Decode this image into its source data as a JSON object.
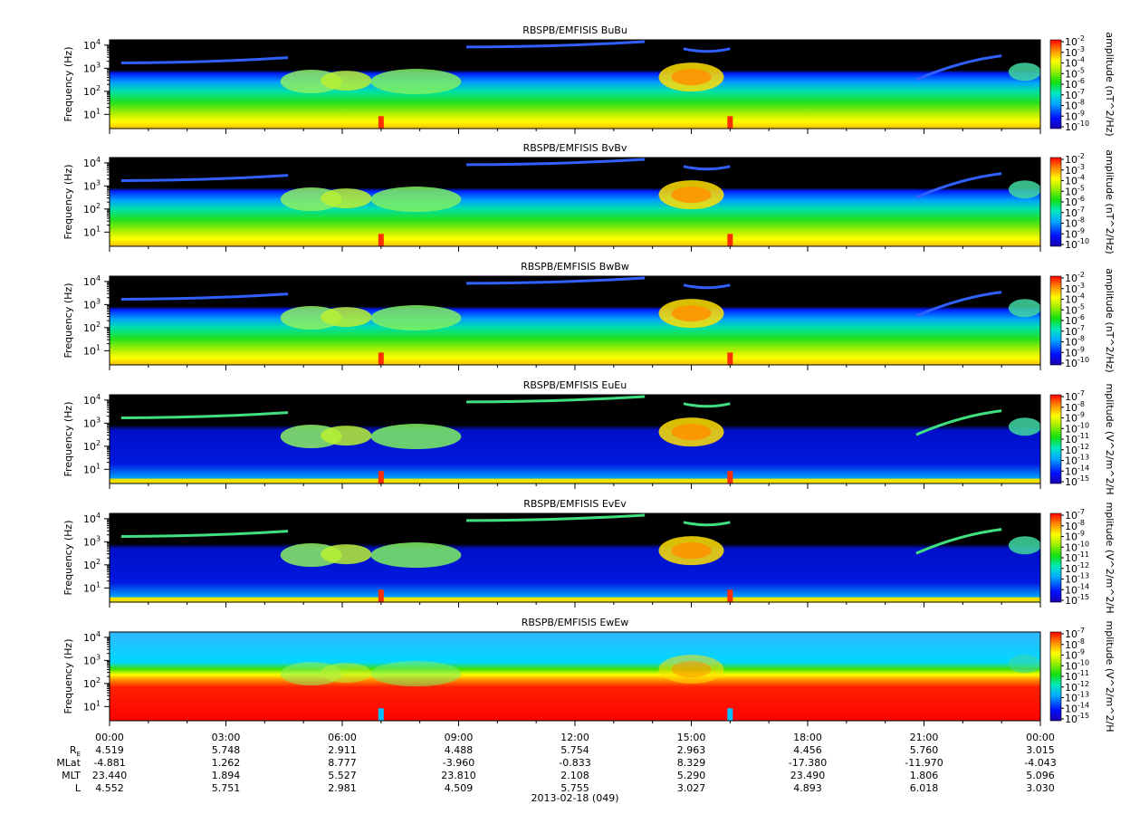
{
  "chart_data": {
    "type": "heatmap",
    "date_label": "2013-02-18 (049)",
    "x_ticks": [
      "00:00",
      "03:00",
      "06:00",
      "09:00",
      "12:00",
      "15:00",
      "18:00",
      "21:00",
      "00:00"
    ],
    "ylabel": "Frequency (Hz)",
    "y_scale": "log",
    "y_ticks": [
      {
        "base": "10",
        "exp": "1"
      },
      {
        "base": "10",
        "exp": "2"
      },
      {
        "base": "10",
        "exp": "3"
      },
      {
        "base": "10",
        "exp": "4"
      }
    ],
    "ephemeris": [
      {
        "label": "R",
        "sub": "E",
        "values": [
          "4.519",
          "5.748",
          "2.911",
          "4.488",
          "5.754",
          "2.963",
          "4.456",
          "5.760",
          "3.015"
        ]
      },
      {
        "label": "MLat",
        "sub": "",
        "values": [
          "-4.881",
          "1.262",
          "8.777",
          "-3.960",
          "-0.833",
          "8.329",
          "-17.380",
          "-11.970",
          "-4.043"
        ]
      },
      {
        "label": "MLT",
        "sub": "",
        "values": [
          "23.440",
          "1.894",
          "5.527",
          "23.810",
          "2.108",
          "5.290",
          "23.490",
          "1.806",
          "5.096"
        ]
      },
      {
        "label": "L",
        "sub": "",
        "values": [
          "4.552",
          "5.751",
          "2.981",
          "4.509",
          "5.755",
          "3.027",
          "4.893",
          "6.018",
          "3.030"
        ]
      }
    ],
    "panels": [
      {
        "title": "RBSPB/EMFISIS  BuBu",
        "colorbar_label": "amplitude (nT^2/Hz)",
        "field": "B",
        "colorbar_ticks": [
          "-2",
          "-3",
          "-4",
          "-5",
          "-6",
          "-7",
          "-8",
          "-9",
          "-10"
        ]
      },
      {
        "title": "RBSPB/EMFISIS  BvBv",
        "colorbar_label": "amplitude (nT^2/Hz)",
        "field": "B",
        "colorbar_ticks": [
          "-2",
          "-3",
          "-4",
          "-5",
          "-6",
          "-7",
          "-8",
          "-9",
          "-10"
        ]
      },
      {
        "title": "RBSPB/EMFISIS  BwBw",
        "colorbar_label": "amplitude (nT^2/Hz)",
        "field": "B",
        "colorbar_ticks": [
          "-2",
          "-3",
          "-4",
          "-5",
          "-6",
          "-7",
          "-8",
          "-9",
          "-10"
        ]
      },
      {
        "title": "RBSPB/EMFISIS  EuEu",
        "colorbar_label": "mplitude (V^2/m^2/H",
        "field": "E",
        "colorbar_ticks": [
          "-7",
          "-8",
          "-9",
          "-10",
          "-11",
          "-12",
          "-13",
          "-14",
          "-15"
        ]
      },
      {
        "title": "RBSPB/EMFISIS  EvEv",
        "colorbar_label": "mplitude (V^2/m^2/H",
        "field": "E",
        "colorbar_ticks": [
          "-7",
          "-8",
          "-9",
          "-10",
          "-11",
          "-12",
          "-13",
          "-14",
          "-15"
        ]
      },
      {
        "title": "RBSPB/EMFISIS  EwEw",
        "colorbar_label": "mplitude (V^2/m^2/H",
        "field": "Ew",
        "colorbar_ticks": [
          "-7",
          "-8",
          "-9",
          "-10",
          "-11",
          "-12",
          "-13",
          "-14",
          "-15"
        ]
      }
    ]
  }
}
